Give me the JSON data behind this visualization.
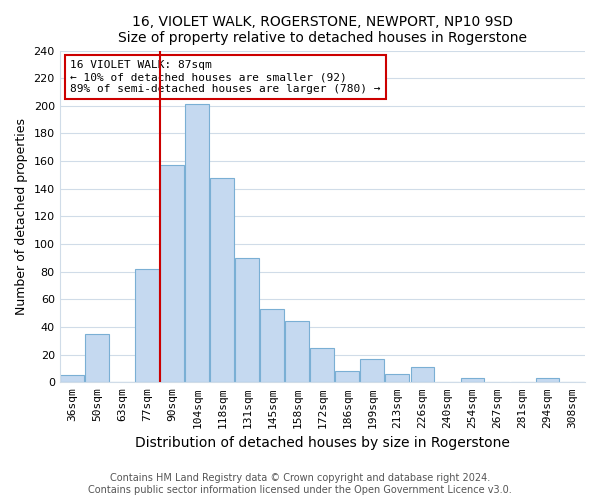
{
  "title": "16, VIOLET WALK, ROGERSTONE, NEWPORT, NP10 9SD",
  "subtitle": "Size of property relative to detached houses in Rogerstone",
  "xlabel": "Distribution of detached houses by size in Rogerstone",
  "ylabel": "Number of detached properties",
  "bar_labels": [
    "36sqm",
    "50sqm",
    "63sqm",
    "77sqm",
    "90sqm",
    "104sqm",
    "118sqm",
    "131sqm",
    "145sqm",
    "158sqm",
    "172sqm",
    "186sqm",
    "199sqm",
    "213sqm",
    "226sqm",
    "240sqm",
    "254sqm",
    "267sqm",
    "281sqm",
    "294sqm",
    "308sqm"
  ],
  "bar_values": [
    5,
    35,
    0,
    82,
    157,
    201,
    148,
    90,
    53,
    44,
    25,
    8,
    17,
    6,
    11,
    0,
    3,
    0,
    0,
    3,
    0
  ],
  "bar_color": "#c5d9f0",
  "bar_edge_color": "#7aafd4",
  "vline_color": "#cc0000",
  "annotation_title": "16 VIOLET WALK: 87sqm",
  "annotation_line1": "← 10% of detached houses are smaller (92)",
  "annotation_line2": "89% of semi-detached houses are larger (780) →",
  "annotation_box_color": "#cc0000",
  "ylim": [
    0,
    240
  ],
  "yticks": [
    0,
    20,
    40,
    60,
    80,
    100,
    120,
    140,
    160,
    180,
    200,
    220,
    240
  ],
  "footer1": "Contains HM Land Registry data © Crown copyright and database right 2024.",
  "footer2": "Contains public sector information licensed under the Open Government Licence v3.0.",
  "title_fontsize": 10,
  "axis_label_fontsize": 9,
  "tick_fontsize": 8,
  "footer_fontsize": 7,
  "vline_bar_index": 3.5
}
